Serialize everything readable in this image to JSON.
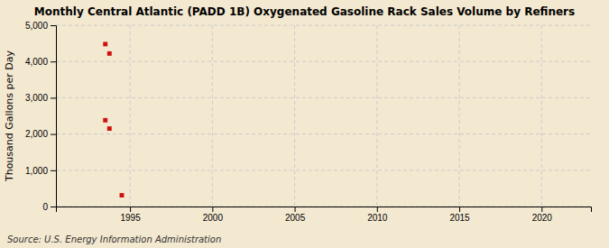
{
  "chart_data": {
    "type": "scatter",
    "title": "Monthly Central Atlantic (PADD 1B) Oxygenated Gasoline Rack Sales Volume by Refiners",
    "ylabel": "Thousand Gallons per Day",
    "source": "Source: U.S. Energy Information Administration",
    "x": [
      1993.5,
      1993.75,
      1993.5,
      1993.75,
      1994.5
    ],
    "values": [
      4480,
      4220,
      2380,
      2150,
      310
    ],
    "color": "#cc1111",
    "marker": "square",
    "xlim": [
      1990.5,
      2023
    ],
    "ylim": [
      0,
      5000
    ],
    "xticks": [
      1995,
      2000,
      2005,
      2010,
      2015,
      2020
    ],
    "yticks": [
      0,
      {
        "value": 1000,
        "label": "1,000"
      },
      {
        "value": 2000,
        "label": "2,000"
      },
      {
        "value": 3000,
        "label": "3,000"
      },
      {
        "value": 4000,
        "label": "4,000"
      },
      {
        "value": 5000,
        "label": "5,000"
      }
    ],
    "grid": true
  }
}
